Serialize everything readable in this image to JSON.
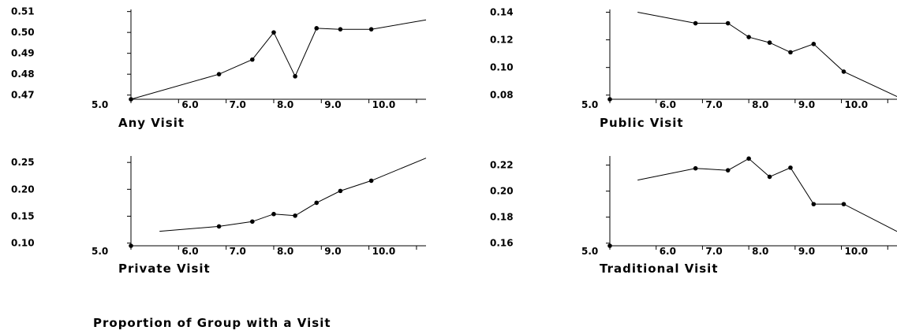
{
  "caption": "Proportion of Group with a Visit",
  "chart_data": [
    {
      "type": "line",
      "label": "Any Visit",
      "x": [
        5.0,
        6.85,
        7.55,
        8.0,
        8.45,
        8.9,
        9.4,
        10.05,
        11.2
      ],
      "y": [
        0.468,
        0.48,
        0.487,
        0.5,
        0.479,
        0.502,
        0.5015,
        0.5015,
        0.506
      ],
      "markers": [
        false,
        true,
        true,
        true,
        true,
        true,
        true,
        true,
        false
      ],
      "yticks": [
        0.47,
        0.48,
        0.49,
        0.5,
        0.51
      ],
      "ytick_labels": [
        "0.47",
        "0.48",
        "0.49",
        "0.50",
        "0.51"
      ],
      "ylim": [
        0.468,
        0.511
      ],
      "xticks": [
        5.0,
        6.0,
        7.0,
        8.0,
        9.0,
        10.0
      ],
      "xtick_labels": [
        "5.0",
        "6.0",
        "7.0",
        "8.0",
        "9.0",
        "10.0"
      ],
      "xlim": [
        5.0,
        11.2
      ]
    },
    {
      "type": "line",
      "label": "Public Visit",
      "x": [
        5.6,
        6.85,
        7.55,
        8.0,
        8.45,
        8.9,
        9.4,
        10.05,
        11.2
      ],
      "y": [
        0.14,
        0.132,
        0.132,
        0.122,
        0.118,
        0.111,
        0.117,
        0.097,
        0.079
      ],
      "markers": [
        false,
        true,
        true,
        true,
        true,
        true,
        true,
        true,
        false
      ],
      "yticks": [
        0.08,
        0.1,
        0.12,
        0.14
      ],
      "ytick_labels": [
        "0.08",
        "0.10",
        "0.12",
        "0.14"
      ],
      "ylim": [
        0.077,
        0.142
      ],
      "xticks": [
        5.0,
        6.0,
        7.0,
        8.0,
        9.0,
        10.0
      ],
      "xtick_labels": [
        "5.0",
        "6.0",
        "7.0",
        "8.0",
        "9.0",
        "10.0"
      ],
      "xlim": [
        5.0,
        11.2
      ]
    },
    {
      "type": "line",
      "label": "Private Visit",
      "x": [
        5.6,
        6.85,
        7.55,
        8.0,
        8.45,
        8.9,
        9.4,
        10.05,
        11.2
      ],
      "y": [
        0.122,
        0.131,
        0.14,
        0.154,
        0.151,
        0.175,
        0.197,
        0.216,
        0.258
      ],
      "markers": [
        false,
        true,
        true,
        true,
        true,
        true,
        true,
        true,
        false
      ],
      "yticks": [
        0.1,
        0.15,
        0.2,
        0.25
      ],
      "ytick_labels": [
        "0.10",
        "0.15",
        "0.20",
        "0.25"
      ],
      "ylim": [
        0.095,
        0.262
      ],
      "xticks": [
        5.0,
        6.0,
        7.0,
        8.0,
        9.0,
        10.0
      ],
      "xtick_labels": [
        "5.0",
        "6.0",
        "7.0",
        "8.0",
        "9.0",
        "10.0"
      ],
      "xlim": [
        5.0,
        11.2
      ]
    },
    {
      "type": "line",
      "label": "Traditional Visit",
      "x": [
        5.6,
        6.85,
        7.55,
        8.0,
        8.45,
        8.9,
        9.4,
        10.05,
        11.2
      ],
      "y": [
        0.2085,
        0.2175,
        0.216,
        0.225,
        0.211,
        0.218,
        0.19,
        0.19,
        0.169
      ],
      "markers": [
        false,
        true,
        true,
        true,
        true,
        true,
        true,
        true,
        false
      ],
      "yticks": [
        0.16,
        0.18,
        0.2,
        0.22
      ],
      "ytick_labels": [
        "0.16",
        "0.18",
        "0.20",
        "0.22"
      ],
      "ylim": [
        0.158,
        0.227
      ],
      "xticks": [
        5.0,
        6.0,
        7.0,
        8.0,
        9.0,
        10.0
      ],
      "xtick_labels": [
        "5.0",
        "6.0",
        "7.0",
        "8.0",
        "9.0",
        "10.0"
      ],
      "xlim": [
        5.0,
        11.2
      ]
    }
  ]
}
